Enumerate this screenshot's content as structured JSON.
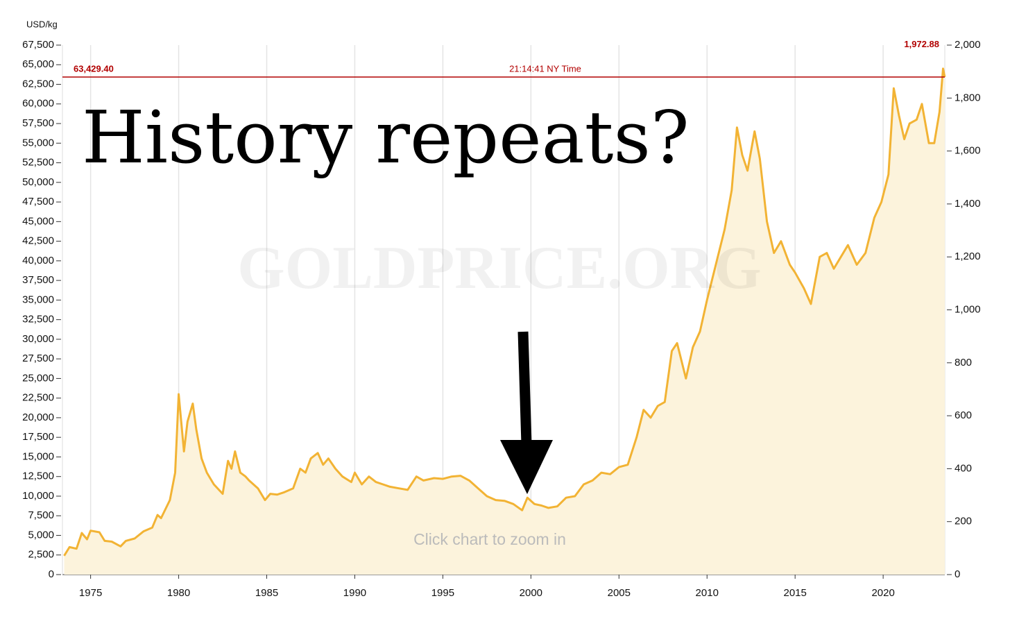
{
  "chart_data": {
    "type": "line",
    "y_label": "USD/kg",
    "heading": "History repeats?",
    "watermark": "GOLDPRICE.ORG",
    "note": "Click chart to zoom in",
    "price_line": {
      "value": 63429.4,
      "label": "63,429.40",
      "time": "21:14:41 NY Time",
      "y2_value": 1972.88,
      "y2_label": "1,972.88"
    },
    "color": "#f2b334",
    "fill_color": "#fcf3dc",
    "price_line_color": "#b20000",
    "grid": "x",
    "xlim": [
      1973.4,
      2023.5
    ],
    "xticks": [
      1975,
      1980,
      1985,
      1990,
      1995,
      2000,
      2005,
      2010,
      2015,
      2020
    ],
    "ylim": [
      0,
      67500
    ],
    "yticks": [
      0,
      {
        "value": 2500,
        "label": "2,500"
      },
      {
        "value": 5000,
        "label": "5,000"
      },
      {
        "value": 7500,
        "label": "7,500"
      },
      {
        "value": 10000,
        "label": "10,000"
      },
      {
        "value": 12500,
        "label": "12,500"
      },
      {
        "value": 15000,
        "label": "15,000"
      },
      {
        "value": 17500,
        "label": "17,500"
      },
      {
        "value": 20000,
        "label": "20,000"
      },
      {
        "value": 22500,
        "label": "22,500"
      },
      {
        "value": 25000,
        "label": "25,000"
      },
      {
        "value": 27500,
        "label": "27,500"
      },
      {
        "value": 30000,
        "label": "30,000"
      },
      {
        "value": 32500,
        "label": "32,500"
      },
      {
        "value": 35000,
        "label": "35,000"
      },
      {
        "value": 37500,
        "label": "37,500"
      },
      {
        "value": 40000,
        "label": "40,000"
      },
      {
        "value": 42500,
        "label": "42,500"
      },
      {
        "value": 45000,
        "label": "45,000"
      },
      {
        "value": 47500,
        "label": "47,500"
      },
      {
        "value": 50000,
        "label": "50,000"
      },
      {
        "value": 52500,
        "label": "52,500"
      },
      {
        "value": 55000,
        "label": "55,000"
      },
      {
        "value": 57500,
        "label": "57,500"
      },
      {
        "value": 60000,
        "label": "60,000"
      },
      {
        "value": 62500,
        "label": "62,500"
      },
      {
        "value": 65000,
        "label": "65,000"
      },
      {
        "value": 67500,
        "label": "67,500"
      }
    ],
    "y2lim": [
      0,
      2000
    ],
    "y2ticks": [
      0,
      200,
      400,
      600,
      800,
      {
        "value": 1000,
        "label": "1,000"
      },
      {
        "value": 1200,
        "label": "1,200"
      },
      {
        "value": 1400,
        "label": "1,400"
      },
      {
        "value": 1600,
        "label": "1,600"
      },
      {
        "value": 1800,
        "label": "1,800"
      },
      {
        "value": 2000,
        "label": "2,000"
      }
    ],
    "x": [
      1973.5,
      1973.8,
      1974.2,
      1974.5,
      1974.8,
      1975.0,
      1975.5,
      1975.8,
      1976.2,
      1976.7,
      1977.0,
      1977.5,
      1978.0,
      1978.5,
      1978.8,
      1979.0,
      1979.5,
      1979.8,
      1980.0,
      1980.3,
      1980.5,
      1980.8,
      1981.0,
      1981.3,
      1981.6,
      1982.0,
      1982.5,
      1982.8,
      1983.0,
      1983.2,
      1983.5,
      1983.8,
      1984.0,
      1984.5,
      1984.9,
      1985.2,
      1985.6,
      1986.0,
      1986.5,
      1986.9,
      1987.2,
      1987.5,
      1987.9,
      1988.2,
      1988.5,
      1988.9,
      1989.3,
      1989.8,
      1990.0,
      1990.4,
      1990.8,
      1991.2,
      1991.6,
      1992.0,
      1992.5,
      1993.0,
      1993.5,
      1993.9,
      1994.5,
      1995.0,
      1995.5,
      1996.0,
      1996.5,
      1997.0,
      1997.5,
      1998.0,
      1998.5,
      1999.0,
      1999.5,
      1999.8,
      2000.2,
      2000.6,
      2001.0,
      2001.5,
      2002.0,
      2002.5,
      2003.0,
      2003.5,
      2004.0,
      2004.5,
      2005.0,
      2005.5,
      2006.0,
      2006.4,
      2006.8,
      2007.2,
      2007.6,
      2008.0,
      2008.3,
      2008.8,
      2009.2,
      2009.6,
      2010.0,
      2010.5,
      2011.0,
      2011.4,
      2011.7,
      2012.0,
      2012.3,
      2012.7,
      2013.0,
      2013.4,
      2013.8,
      2014.2,
      2014.7,
      2015.0,
      2015.5,
      2015.9,
      2016.4,
      2016.8,
      2017.2,
      2017.6,
      2018.0,
      2018.5,
      2019.0,
      2019.5,
      2019.9,
      2020.3,
      2020.6,
      2020.9,
      2021.2,
      2021.5,
      2021.9,
      2022.2,
      2022.6,
      2022.9,
      2023.2,
      2023.4,
      2023.5
    ],
    "values": [
      2400,
      3500,
      3300,
      5300,
      4500,
      5600,
      5400,
      4300,
      4200,
      3600,
      4300,
      4600,
      5500,
      6000,
      7600,
      7200,
      9500,
      13000,
      23000,
      15700,
      19500,
      21800,
      18500,
      14800,
      13000,
      11500,
      10300,
      14500,
      13500,
      15700,
      13000,
      12500,
      12000,
      11000,
      9500,
      10300,
      10200,
      10500,
      11000,
      13500,
      13000,
      14800,
      15500,
      14000,
      14800,
      13500,
      12500,
      11800,
      13000,
      11500,
      12500,
      11800,
      11500,
      11200,
      11000,
      10800,
      12500,
      12000,
      12300,
      12200,
      12500,
      12600,
      12000,
      11000,
      10000,
      9500,
      9400,
      9000,
      8200,
      9800,
      9000,
      8800,
      8500,
      8700,
      9800,
      10000,
      11500,
      12000,
      13000,
      12800,
      13700,
      14000,
      17500,
      21000,
      20000,
      21500,
      22000,
      28500,
      29500,
      25000,
      29000,
      31000,
      35000,
      39500,
      44000,
      49000,
      57000,
      53500,
      51500,
      56500,
      53000,
      45000,
      41000,
      42500,
      39500,
      38500,
      36500,
      34500,
      40500,
      41000,
      39000,
      40500,
      42000,
      39500,
      41000,
      45500,
      47500,
      51000,
      62000,
      58500,
      55500,
      57500,
      58000,
      60000,
      55000,
      55000,
      59000,
      64500,
      63429.4
    ]
  }
}
